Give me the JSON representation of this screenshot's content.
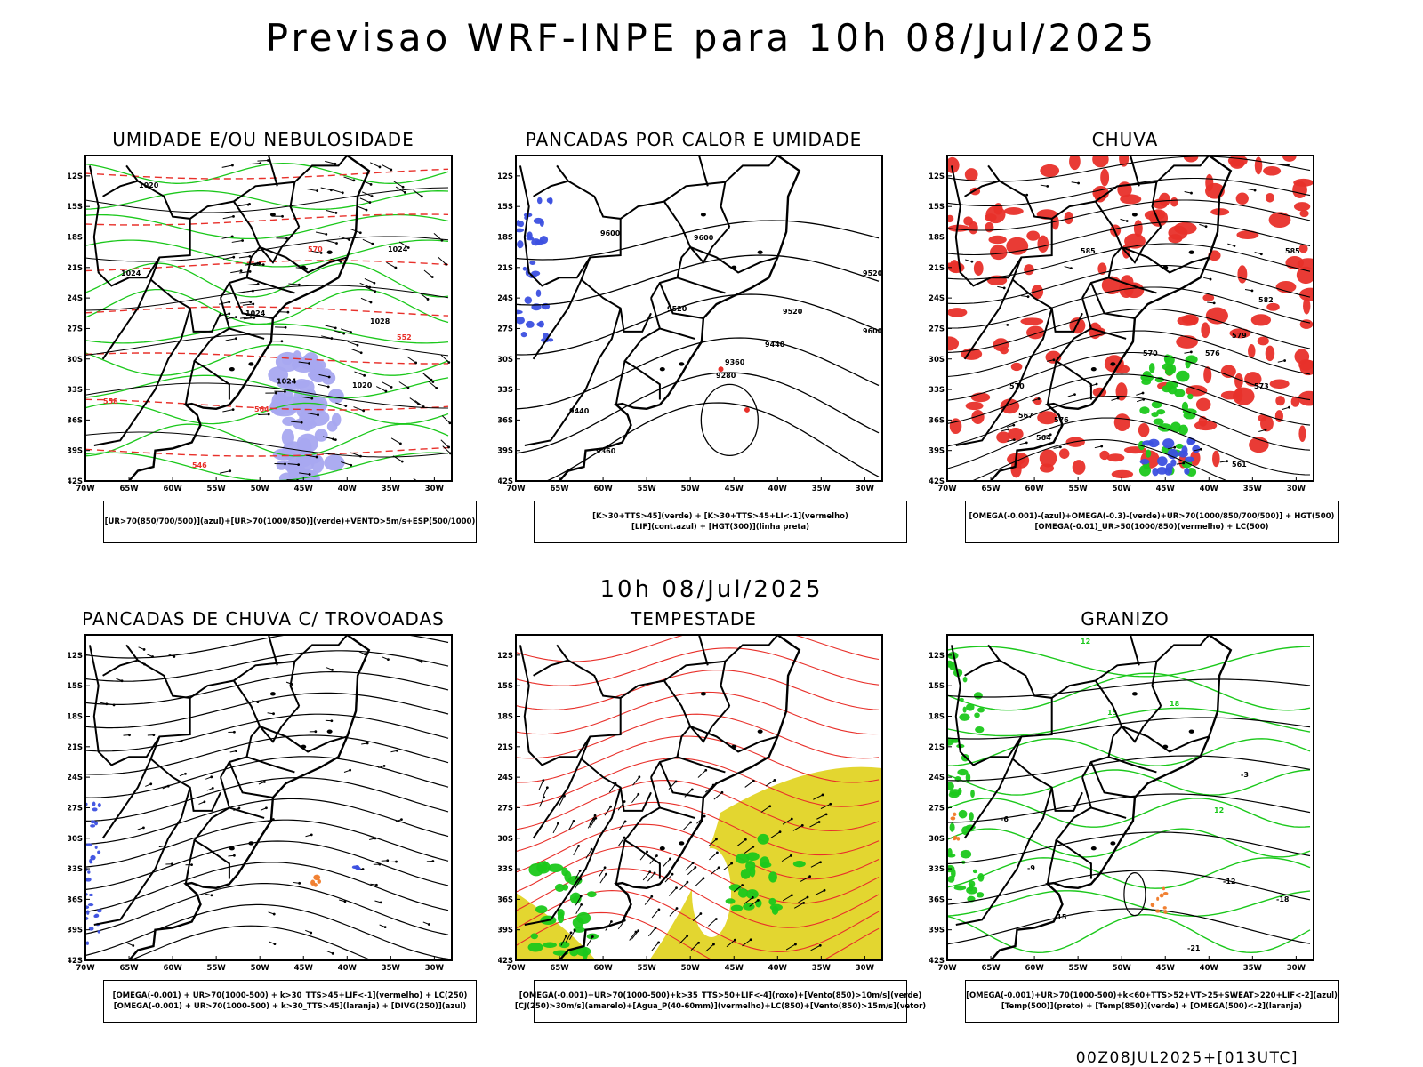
{
  "header": {
    "title": "Previsao WRF-INPE  para 10h 08/Jul/2025",
    "mid_title": "10h 08/Jul/2025",
    "footer_stamp": "00Z08JUL2025+[013UTC]"
  },
  "axes": {
    "lat_labels": [
      "12S",
      "15S",
      "18S",
      "21S",
      "24S",
      "27S",
      "30S",
      "33S",
      "36S",
      "39S",
      "42S"
    ],
    "lon_labels": [
      "70W",
      "65W",
      "60W",
      "55W",
      "50W",
      "45W",
      "40W",
      "35W",
      "30W"
    ]
  },
  "colors": {
    "red": "#e8302a",
    "green": "#1bc81b",
    "blue": "#3c50e0",
    "lightblue": "#a8a8f0",
    "yellow": "#e3d630",
    "orange": "#f07a28"
  },
  "panels": [
    {
      "id": "umidade",
      "title": "UMIDADE E/OU NEBULOSIDADE",
      "legend": [
        "[UR>70(850/700/500)](azul)+[UR>70(1000/850)](verde)+VENTO>5m/s+ESP(500/1000)"
      ],
      "contour_labels": [
        "1020",
        "1024",
        "1024",
        "1024",
        "1028",
        "570",
        "564",
        "558",
        "552",
        "546",
        "1020",
        "1024",
        "1028"
      ]
    },
    {
      "id": "pancadas",
      "title": "PANCADAS POR CALOR E UMIDADE",
      "legend": [
        "[K>30+TTS>45](verde) + [K>30+TTS>45+LI<-1](vermelho)",
        "[LIF](cont.azul) + [HGT(300)](linha preta)"
      ],
      "contour_labels": [
        "9600",
        "9600",
        "9520",
        "9520",
        "9520",
        "9440",
        "9440",
        "9360",
        "9360",
        "9280",
        "9600"
      ]
    },
    {
      "id": "chuva",
      "title": "CHUVA",
      "legend": [
        "[OMEGA(-0.001)-(azul)+OMEGA(-0.3)-(verde)+UR>70(1000/850/700/500)] + HGT(500)",
        "[OMEGA(-0.01)_UR>50(1000/850)(vermelho) + LC(500)"
      ],
      "contour_labels": [
        "585",
        "585",
        "582",
        "579",
        "576",
        "573",
        "570",
        "567",
        "564",
        "561",
        "570",
        "576"
      ]
    },
    {
      "id": "trovoadas",
      "title": "PANCADAS DE CHUVA C/ TROVOADAS",
      "legend": [
        "[OMEGA(-0.001) + UR>70(1000-500) + k>30_TTS>45+LIF<-1](vermelho) + LC(250)",
        "[OMEGA(-0.001) + UR>70(1000-500) + k>30_TTS>45](laranja) + [DIVG(250)](azul)"
      ],
      "contour_labels": []
    },
    {
      "id": "tempestade",
      "title": "TEMPESTADE",
      "legend": [
        "[OMEGA(-0.001)+UR>70(1000-500)+k>35_TTS>50+LIF<-4](roxo)+[Vento(850)>10m/s](verde)",
        "[CJ(250)>30m/s](amarelo)+[Agua_P(40-60mm)](vermelho)+LC(850)+[Vento(850)>15m/s](vetor)"
      ],
      "contour_labels": []
    },
    {
      "id": "granizo",
      "title": "GRANIZO",
      "legend": [
        "[OMEGA(-0.001)+UR>70(1000-500)+k<60+TTS>52+VT>25+SWEAT>220+LIF<-2](azul)",
        "[Temp(500)](preto) + [Temp(850)](verde) + [OMEGA(500)<-2](laranja)"
      ],
      "contour_labels": [
        "-3",
        "-6",
        "-9",
        "-12",
        "-15",
        "-18",
        "-21",
        "12",
        "15",
        "18",
        "12"
      ]
    }
  ]
}
